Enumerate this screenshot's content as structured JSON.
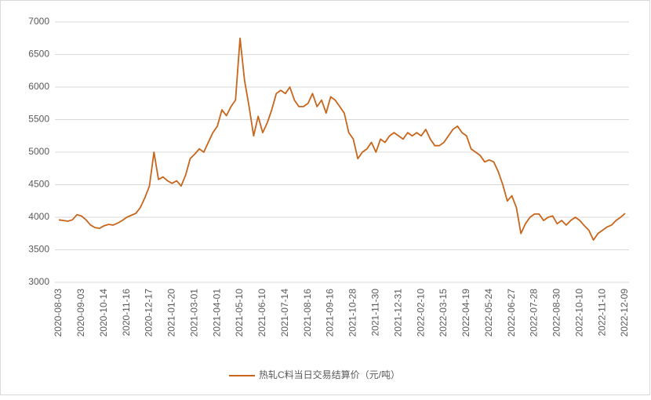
{
  "chart_data": {
    "type": "line",
    "categories": [
      "2020-08-03",
      null,
      null,
      null,
      null,
      "2020-09-03",
      null,
      null,
      null,
      null,
      "2020-10-14",
      null,
      null,
      null,
      null,
      "2020-11-16",
      null,
      null,
      null,
      null,
      "2020-12-17",
      null,
      null,
      null,
      null,
      "2021-01-20",
      null,
      null,
      null,
      null,
      "2021-03-01",
      null,
      null,
      null,
      null,
      "2021-04-01",
      null,
      null,
      null,
      null,
      "2021-05-10",
      null,
      null,
      null,
      null,
      "2021-06-10",
      null,
      null,
      null,
      null,
      "2021-07-14",
      null,
      null,
      null,
      null,
      "2021-08-16",
      null,
      null,
      null,
      null,
      "2021-09-16",
      null,
      null,
      null,
      null,
      "2021-10-28",
      null,
      null,
      null,
      null,
      "2021-11-30",
      null,
      null,
      null,
      null,
      "2021-12-31",
      null,
      null,
      null,
      null,
      "2022-02-10",
      null,
      null,
      null,
      null,
      "2022-03-15",
      null,
      null,
      null,
      null,
      "2022-04-19",
      null,
      null,
      null,
      null,
      "2022-05-24",
      null,
      null,
      null,
      null,
      "2022-06-27",
      null,
      null,
      null,
      null,
      "2022-07-28",
      null,
      null,
      null,
      null,
      "2022-08-30",
      null,
      null,
      null,
      null,
      "2022-10-10",
      null,
      null,
      null,
      null,
      "2022-11-10",
      null,
      null,
      null,
      null,
      "2022-12-09"
    ],
    "series": [
      {
        "name": "热轧C料当日交易结算价（元/吨）",
        "color": "#c8651b",
        "values": [
          3960,
          3950,
          3940,
          3960,
          4040,
          4020,
          3960,
          3880,
          3840,
          3830,
          3870,
          3890,
          3880,
          3910,
          3950,
          4000,
          4030,
          4060,
          4150,
          4300,
          4480,
          5000,
          4580,
          4620,
          4560,
          4520,
          4560,
          4480,
          4650,
          4900,
          4970,
          5050,
          5000,
          5150,
          5300,
          5400,
          5650,
          5560,
          5700,
          5800,
          6750,
          6100,
          5700,
          5250,
          5550,
          5300,
          5450,
          5650,
          5900,
          5950,
          5900,
          6000,
          5800,
          5700,
          5700,
          5750,
          5900,
          5700,
          5800,
          5600,
          5850,
          5800,
          5700,
          5600,
          5300,
          5200,
          4900,
          5000,
          5050,
          5150,
          5000,
          5200,
          5150,
          5250,
          5300,
          5250,
          5200,
          5300,
          5250,
          5300,
          5250,
          5350,
          5200,
          5100,
          5100,
          5150,
          5250,
          5350,
          5400,
          5300,
          5250,
          5050,
          5000,
          4950,
          4850,
          4880,
          4850,
          4700,
          4500,
          4250,
          4330,
          4150,
          3750,
          3900,
          4000,
          4050,
          4050,
          3950,
          4000,
          4020,
          3900,
          3950,
          3880,
          3950,
          4000,
          3950,
          3870,
          3800,
          3650,
          3750,
          3800,
          3850,
          3880,
          3950,
          4000,
          4060
        ]
      }
    ],
    "ylim": [
      3000,
      7000
    ],
    "yticks": [
      3000,
      3500,
      4000,
      4500,
      5000,
      5500,
      6000,
      6500,
      7000
    ],
    "grid": true,
    "legend": "bottom"
  }
}
